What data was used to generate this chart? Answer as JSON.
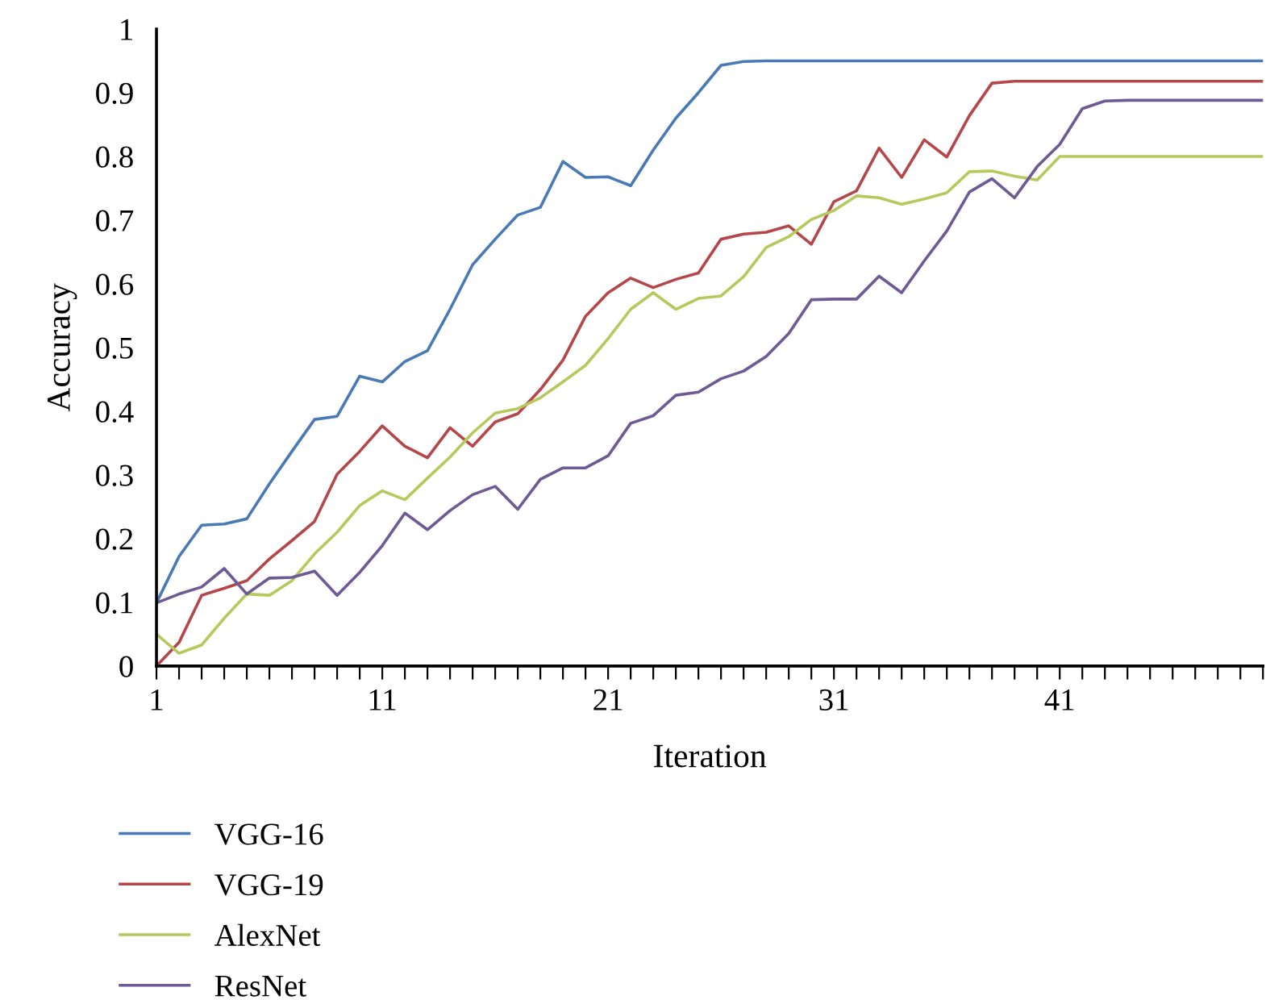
{
  "chart_data": {
    "type": "line",
    "xlabel": "Iteration",
    "ylabel": "Accuracy",
    "x": [
      1,
      2,
      3,
      4,
      5,
      6,
      7,
      8,
      9,
      10,
      11,
      12,
      13,
      14,
      15,
      16,
      17,
      18,
      19,
      20,
      21,
      22,
      23,
      24,
      25,
      26,
      27,
      28,
      29,
      30,
      31,
      32,
      33,
      34,
      35,
      36,
      37,
      38,
      39,
      40,
      41,
      42,
      43,
      44,
      45,
      46,
      47,
      48,
      49,
      50
    ],
    "xlim": [
      1,
      50
    ],
    "xticks": [
      1,
      {
        "value": 2,
        "label": null
      },
      {
        "value": 3,
        "label": null
      },
      {
        "value": 4,
        "label": null
      },
      {
        "value": 5,
        "label": null
      },
      {
        "value": 6,
        "label": null
      },
      {
        "value": 7,
        "label": null
      },
      {
        "value": 8,
        "label": null
      },
      {
        "value": 9,
        "label": null
      },
      {
        "value": 10,
        "label": null
      },
      11,
      {
        "value": 12,
        "label": null
      },
      {
        "value": 13,
        "label": null
      },
      {
        "value": 14,
        "label": null
      },
      {
        "value": 15,
        "label": null
      },
      {
        "value": 16,
        "label": null
      },
      {
        "value": 17,
        "label": null
      },
      {
        "value": 18,
        "label": null
      },
      {
        "value": 19,
        "label": null
      },
      {
        "value": 20,
        "label": null
      },
      21,
      {
        "value": 22,
        "label": null
      },
      {
        "value": 23,
        "label": null
      },
      {
        "value": 24,
        "label": null
      },
      {
        "value": 25,
        "label": null
      },
      {
        "value": 26,
        "label": null
      },
      {
        "value": 27,
        "label": null
      },
      {
        "value": 28,
        "label": null
      },
      {
        "value": 29,
        "label": null
      },
      {
        "value": 30,
        "label": null
      },
      31,
      {
        "value": 32,
        "label": null
      },
      {
        "value": 33,
        "label": null
      },
      {
        "value": 34,
        "label": null
      },
      {
        "value": 35,
        "label": null
      },
      {
        "value": 36,
        "label": null
      },
      {
        "value": 37,
        "label": null
      },
      {
        "value": 38,
        "label": null
      },
      {
        "value": 39,
        "label": null
      },
      {
        "value": 40,
        "label": null
      },
      41,
      {
        "value": 42,
        "label": null
      },
      {
        "value": 43,
        "label": null
      },
      {
        "value": 44,
        "label": null
      },
      {
        "value": 45,
        "label": null
      },
      {
        "value": 46,
        "label": null
      },
      {
        "value": 47,
        "label": null
      },
      {
        "value": 48,
        "label": null
      },
      {
        "value": 49,
        "label": null
      },
      {
        "value": 50,
        "label": null
      }
    ],
    "ylim": [
      0,
      1
    ],
    "yticks": [
      0,
      0.1,
      0.2,
      0.3,
      0.4,
      0.5,
      0.6,
      0.7,
      0.8,
      0.9,
      1
    ],
    "grid": false,
    "legend": "bottom",
    "marker": "none",
    "line_style": "solid",
    "series": [
      {
        "name": "VGG-16",
        "color": "#4a7ab5",
        "values": [
          0.099,
          0.172,
          0.221,
          0.223,
          0.231,
          0.286,
          0.337,
          0.387,
          0.392,
          0.455,
          0.446,
          0.478,
          0.495,
          0.56,
          0.63,
          0.67,
          0.708,
          0.72,
          0.792,
          0.767,
          0.768,
          0.754,
          0.81,
          0.86,
          0.9,
          0.943,
          0.949,
          0.95,
          0.95,
          0.95,
          0.95,
          0.95,
          0.95,
          0.95,
          0.95,
          0.95,
          0.95,
          0.95,
          0.95,
          0.95,
          0.95,
          0.95,
          0.95,
          0.95,
          0.95,
          0.95,
          0.95,
          0.95,
          0.95,
          0.95
        ]
      },
      {
        "name": "VGG-19",
        "color": "#b5474b",
        "values": [
          0.0,
          0.037,
          0.111,
          0.122,
          0.134,
          0.168,
          0.197,
          0.227,
          0.301,
          0.337,
          0.377,
          0.345,
          0.327,
          0.374,
          0.345,
          0.383,
          0.396,
          0.434,
          0.48,
          0.549,
          0.586,
          0.609,
          0.594,
          0.607,
          0.617,
          0.67,
          0.678,
          0.681,
          0.691,
          0.662,
          0.729,
          0.746,
          0.813,
          0.767,
          0.826,
          0.799,
          0.864,
          0.915,
          0.918,
          0.918,
          0.918,
          0.918,
          0.918,
          0.918,
          0.918,
          0.918,
          0.918,
          0.918,
          0.918,
          0.918
        ]
      },
      {
        "name": "AlexNet",
        "color": "#b5c95c",
        "values": [
          0.05,
          0.02,
          0.033,
          0.075,
          0.113,
          0.111,
          0.134,
          0.176,
          0.21,
          0.252,
          0.275,
          0.261,
          0.295,
          0.328,
          0.366,
          0.397,
          0.404,
          0.421,
          0.446,
          0.472,
          0.514,
          0.56,
          0.586,
          0.56,
          0.577,
          0.581,
          0.611,
          0.657,
          0.674,
          0.701,
          0.715,
          0.738,
          0.735,
          0.725,
          0.733,
          0.743,
          0.776,
          0.777,
          0.769,
          0.763,
          0.8,
          0.8,
          0.8,
          0.8,
          0.8,
          0.8,
          0.8,
          0.8,
          0.8,
          0.8
        ]
      },
      {
        "name": "ResNet",
        "color": "#6e5a94",
        "values": [
          0.099,
          0.113,
          0.124,
          0.153,
          0.113,
          0.138,
          0.139,
          0.149,
          0.111,
          0.147,
          0.189,
          0.24,
          0.214,
          0.244,
          0.269,
          0.282,
          0.246,
          0.293,
          0.311,
          0.311,
          0.33,
          0.381,
          0.393,
          0.425,
          0.43,
          0.451,
          0.463,
          0.486,
          0.522,
          0.575,
          0.576,
          0.576,
          0.612,
          0.586,
          0.636,
          0.683,
          0.744,
          0.765,
          0.735,
          0.784,
          0.819,
          0.875,
          0.887,
          0.888,
          0.888,
          0.888,
          0.888,
          0.888,
          0.888,
          0.888
        ]
      }
    ]
  }
}
